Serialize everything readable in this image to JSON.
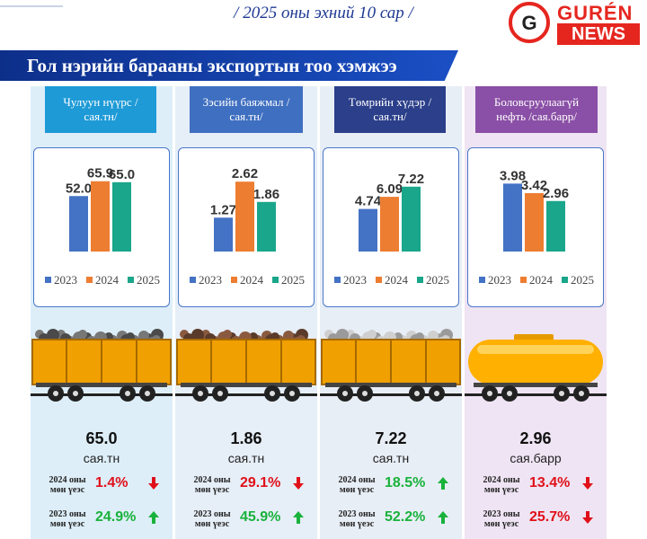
{
  "header": {
    "subtitle": "/ 2025 оны эхний 10 сар /",
    "brand_top": "GURÉN",
    "brand_bottom": "NEWS",
    "brand_mark": "G"
  },
  "banner": {
    "title": "Гол нэрийн барааны экспортын тоо хэмжээ"
  },
  "colors": {
    "y2023": "#4472c4",
    "y2024": "#ed7d31",
    "y2025": "#1aa68a",
    "up": "#19b23b",
    "down": "#e0101a"
  },
  "legend": [
    "2023",
    "2024",
    "2025"
  ],
  "chart_data": [
    {
      "type": "bar",
      "title": "Чулуун нүүрс /сая.тн/",
      "categories": [
        "2023",
        "2024",
        "2025"
      ],
      "values": [
        52.0,
        65.9,
        65.0
      ],
      "labels": [
        "52.0",
        "65.9",
        "65.0"
      ],
      "ylim": [
        0,
        80
      ]
    },
    {
      "type": "bar",
      "title": "Зэсийн баяжмал /сая.тн/",
      "categories": [
        "2023",
        "2024",
        "2025"
      ],
      "values": [
        1.27,
        2.62,
        1.86
      ],
      "labels": [
        "1.27",
        "2.62",
        "1.86"
      ],
      "ylim": [
        0,
        3.2
      ]
    },
    {
      "type": "bar",
      "title": "Төмрийн хүдэр /сая.тн/",
      "categories": [
        "2023",
        "2024",
        "2025"
      ],
      "values": [
        4.74,
        6.09,
        7.22
      ],
      "labels": [
        "4.74",
        "6.09",
        "7.22"
      ],
      "ylim": [
        0,
        9.5
      ]
    },
    {
      "type": "bar",
      "title": "Боловсруулаагүй нефть /сая.барр/",
      "categories": [
        "2023",
        "2024",
        "2025"
      ],
      "values": [
        3.98,
        3.42,
        2.96
      ],
      "labels": [
        "3.98",
        "3.42",
        "2.96"
      ],
      "ylim": [
        0,
        5.0
      ]
    }
  ],
  "columns": [
    {
      "label": "Чулуун нүүрс /сая.тн/",
      "value": "65.0",
      "unit": "сая.тн",
      "cmp": [
        {
          "label": "2024 оны мөн үеэс",
          "pct": "1.4%",
          "dir": "down"
        },
        {
          "label": "2023 оны мөн үеэс",
          "pct": "24.9%",
          "dir": "up"
        }
      ]
    },
    {
      "label": "Зэсийн баяжмал /сая.тн/",
      "value": "1.86",
      "unit": "сая.тн",
      "cmp": [
        {
          "label": "2024 оны мөн үеэс",
          "pct": "29.1%",
          "dir": "down"
        },
        {
          "label": "2023 оны мөн үеэс",
          "pct": "45.9%",
          "dir": "up"
        }
      ]
    },
    {
      "label": "Төмрийн хүдэр /сая.тн/",
      "value": "7.22",
      "unit": "сая.тн",
      "cmp": [
        {
          "label": "2024 оны мөн үеэс",
          "pct": "18.5%",
          "dir": "up"
        },
        {
          "label": "2023 оны мөн үеэс",
          "pct": "52.2%",
          "dir": "up"
        }
      ]
    },
    {
      "label": "Боловсруулаагүй нефть /сая.барр/",
      "value": "2.96",
      "unit": "сая.барр",
      "cmp": [
        {
          "label": "2024 оны мөн үеэс",
          "pct": "13.4%",
          "dir": "down"
        },
        {
          "label": "2023 оны мөн үеэс",
          "pct": "25.7%",
          "dir": "down"
        }
      ]
    }
  ]
}
